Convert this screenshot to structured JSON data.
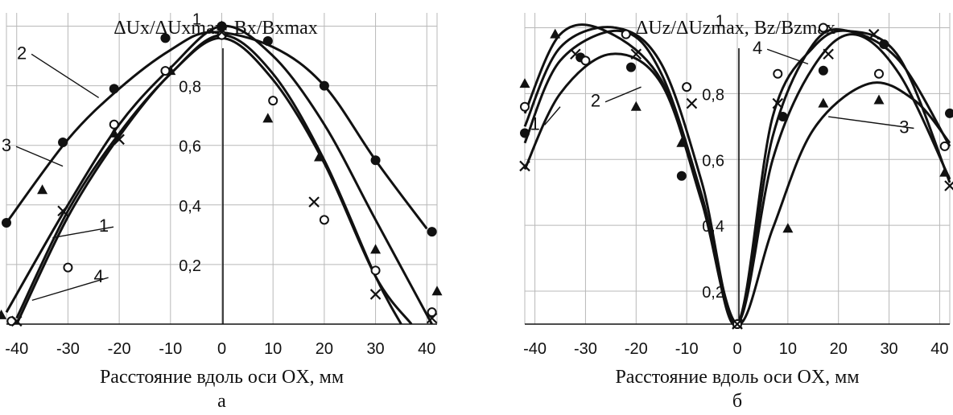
{
  "chart_data": [
    {
      "panel": "а",
      "type": "line",
      "ylabel": "ΔUx/ΔUxmax, Bx/Bxmax",
      "xlabel": "Расстояние вдоль оси OX, мм",
      "xlim": [
        -42,
        42
      ],
      "ylim": [
        0,
        1.05
      ],
      "x_ticks": [
        -40,
        -30,
        -20,
        -10,
        0,
        10,
        20,
        30,
        40
      ],
      "y_ticks": [
        {
          "v": 0.2,
          "label": "0,2"
        },
        {
          "v": 0.4,
          "label": "0,4"
        },
        {
          "v": 0.6,
          "label": "0,6"
        },
        {
          "v": 0.8,
          "label": "0,8"
        },
        {
          "v": 1.0,
          "label": "1"
        }
      ],
      "grid": true,
      "series": [
        {
          "name": "1",
          "x": [
            -40,
            -30,
            -20,
            -10,
            0,
            10,
            20,
            30,
            35
          ],
          "y": [
            0.02,
            0.38,
            0.64,
            0.84,
            0.97,
            0.84,
            0.55,
            0.16,
            0.0
          ]
        },
        {
          "name": "2",
          "x": [
            -42,
            -30,
            -20,
            -10,
            -2,
            10,
            20,
            30,
            40
          ],
          "y": [
            0.34,
            0.62,
            0.79,
            0.92,
            0.98,
            0.93,
            0.8,
            0.55,
            0.32
          ]
        },
        {
          "name": "3",
          "x": [
            -42,
            -30,
            -20,
            -10,
            0,
            10,
            20,
            30,
            41
          ],
          "y": [
            0.04,
            0.4,
            0.67,
            0.86,
            1.0,
            0.9,
            0.67,
            0.35,
            0.0
          ]
        },
        {
          "name": "4",
          "x": [
            -40,
            -30,
            -20,
            -10,
            0,
            10,
            20,
            30,
            37
          ],
          "y": [
            0.0,
            0.36,
            0.63,
            0.84,
            0.96,
            0.82,
            0.54,
            0.16,
            0.0
          ]
        }
      ],
      "markers": [
        {
          "shape": "dot",
          "x": [
            -42,
            -31,
            -21,
            -11,
            0,
            9,
            20,
            30,
            41
          ],
          "y": [
            0.34,
            0.61,
            0.79,
            0.96,
            1.0,
            0.95,
            0.8,
            0.55,
            0.31
          ]
        },
        {
          "shape": "triangle",
          "x": [
            -43,
            -35,
            -21,
            -10,
            0,
            9,
            19,
            30,
            42
          ],
          "y": [
            0.03,
            0.45,
            0.64,
            0.85,
            1.0,
            0.69,
            0.56,
            0.25,
            0.11
          ]
        },
        {
          "shape": "circle",
          "x": [
            -41,
            -30,
            -21,
            -11,
            0,
            10,
            20,
            30,
            41
          ],
          "y": [
            0.01,
            0.19,
            0.67,
            0.85,
            0.97,
            0.75,
            0.35,
            0.18,
            0.04
          ]
        },
        {
          "shape": "cross",
          "x": [
            -40,
            -31,
            -20,
            0,
            18,
            30,
            41
          ],
          "y": [
            0.01,
            0.38,
            0.62,
            0.98,
            0.41,
            0.1,
            0.02
          ]
        }
      ],
      "curve_labels": [
        {
          "text": "2",
          "at": [
            -39,
            0.89
          ],
          "to": [
            -24,
            0.76
          ]
        },
        {
          "text": "3",
          "at": [
            -42,
            0.58
          ],
          "to": [
            -31,
            0.53
          ]
        },
        {
          "text": "1",
          "at": [
            -23,
            0.31
          ],
          "to": [
            -33,
            0.29
          ]
        },
        {
          "text": "4",
          "at": [
            -24,
            0.14
          ],
          "to": [
            -37,
            0.08
          ]
        }
      ],
      "panel_label": "а"
    },
    {
      "panel": "б",
      "type": "line",
      "ylabel": "ΔUz/ΔUzmax, Bz/Bzmax",
      "xlabel": "Расстояние вдоль оси OX, мм",
      "xlim": [
        -42,
        42
      ],
      "ylim": [
        0.1,
        1.05
      ],
      "x_ticks": [
        -40,
        -30,
        -20,
        -10,
        0,
        10,
        20,
        30,
        40
      ],
      "y_ticks": [
        {
          "v": 0.2,
          "label": "0,2"
        },
        {
          "v": 0.4,
          "label": "0,4"
        },
        {
          "v": 0.6,
          "label": "0,6"
        },
        {
          "v": 0.8,
          "label": "0,8"
        },
        {
          "v": 1.0,
          "label": "1"
        }
      ],
      "grid": true,
      "series": [
        {
          "name": "1",
          "x": [
            -42,
            -35,
            -25,
            -15,
            -7,
            0,
            7,
            15,
            23,
            32,
            42
          ],
          "y": [
            0.57,
            0.8,
            0.92,
            0.83,
            0.47,
            0.1,
            0.6,
            0.88,
            0.98,
            0.86,
            0.54
          ]
        },
        {
          "name": "2",
          "x": [
            -42,
            -35,
            -24,
            -15,
            -7,
            0,
            7,
            15,
            22,
            32,
            42
          ],
          "y": [
            0.7,
            0.94,
            1.0,
            0.89,
            0.53,
            0.1,
            0.67,
            0.95,
            0.99,
            0.9,
            0.64
          ]
        },
        {
          "name": "3",
          "x": [
            -42,
            -35,
            -26,
            -15,
            -7,
            0,
            7,
            15,
            26,
            35,
            42
          ],
          "y": [
            0.74,
            0.98,
            0.99,
            0.84,
            0.48,
            0.1,
            0.39,
            0.69,
            0.83,
            0.78,
            0.65
          ]
        },
        {
          "name": "4",
          "x": [
            -42,
            -35,
            -23,
            -15,
            -7,
            0,
            7,
            15,
            22,
            32,
            42
          ],
          "y": [
            0.65,
            0.9,
            0.99,
            0.86,
            0.49,
            0.1,
            0.73,
            0.94,
            0.99,
            0.91,
            0.53
          ]
        }
      ],
      "markers": [
        {
          "shape": "dot",
          "x": [
            -42,
            -31,
            -21,
            -11,
            0,
            9,
            17,
            29,
            42
          ],
          "y": [
            0.68,
            0.91,
            0.88,
            0.55,
            0.1,
            0.73,
            0.87,
            0.95,
            0.74
          ]
        },
        {
          "shape": "triangle",
          "x": [
            -42,
            -36,
            -20,
            -11,
            0,
            10,
            17,
            28,
            41
          ],
          "y": [
            0.83,
            0.98,
            0.76,
            0.65,
            0.1,
            0.39,
            0.77,
            0.78,
            0.56
          ]
        },
        {
          "shape": "circle",
          "x": [
            -42,
            -30,
            -22,
            -10,
            0,
            8,
            17,
            28,
            41
          ],
          "y": [
            0.76,
            0.9,
            0.98,
            0.82,
            0.1,
            0.86,
            1.0,
            0.86,
            0.64
          ]
        },
        {
          "shape": "cross",
          "x": [
            -42,
            -32,
            -20,
            -9,
            0,
            8,
            18,
            27,
            42
          ],
          "y": [
            0.58,
            0.92,
            0.92,
            0.77,
            0.1,
            0.77,
            0.92,
            0.98,
            0.52
          ]
        }
      ],
      "curve_labels": [
        {
          "text": "1",
          "at": [
            -40,
            0.69
          ],
          "to": [
            -35,
            0.76
          ]
        },
        {
          "text": "2",
          "at": [
            -28,
            0.76
          ],
          "to": [
            -19,
            0.82
          ]
        },
        {
          "text": "3",
          "at": [
            33,
            0.68
          ],
          "to": [
            18,
            0.73
          ]
        },
        {
          "text": "4",
          "at": [
            4,
            0.92
          ],
          "to": [
            14,
            0.89
          ]
        }
      ],
      "panel_label": "б"
    }
  ]
}
